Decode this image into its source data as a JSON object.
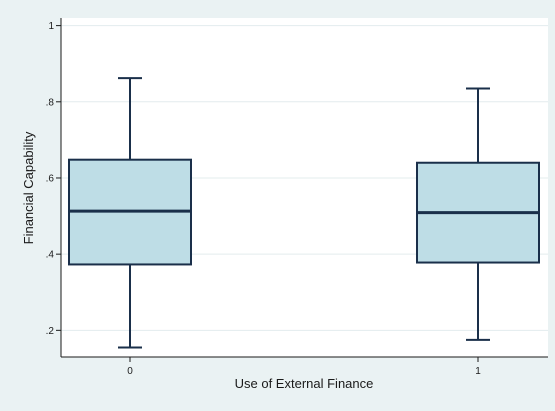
{
  "chart_data": {
    "type": "box",
    "xlabel": "Use of External Finance",
    "ylabel": "Financial Capability",
    "ylim": [
      0.13,
      1.02
    ],
    "yticks": [
      {
        "value": 0.2,
        "label": ".2"
      },
      {
        "value": 0.4,
        "label": ".4"
      },
      {
        "value": 0.6,
        "label": ".6"
      },
      {
        "value": 0.8,
        "label": ".8"
      },
      {
        "value": 1.0,
        "label": "1"
      }
    ],
    "categories": [
      "0",
      "1"
    ],
    "boxes": [
      {
        "category": "0",
        "whisker_low": 0.155,
        "q1": 0.373,
        "median": 0.513,
        "q3": 0.648,
        "whisker_high": 0.862
      },
      {
        "category": "1",
        "whisker_low": 0.175,
        "q1": 0.378,
        "median": 0.509,
        "q3": 0.64,
        "whisker_high": 0.835
      }
    ],
    "grid": true,
    "colors": {
      "box_fill": "#bedde6",
      "box_stroke": "#1a2f4a",
      "plot_bg": "#ffffff",
      "outer_bg": "#eaf2f3",
      "grid": "#e3ecee"
    }
  }
}
